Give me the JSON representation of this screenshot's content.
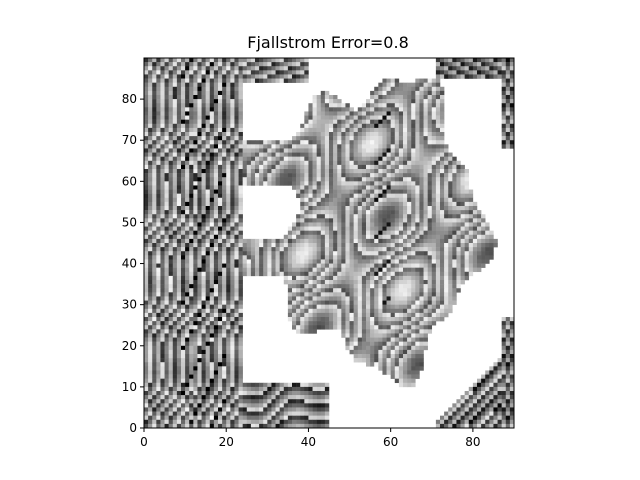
{
  "chart_data": {
    "type": "heatmap",
    "title": "Fjallstrom Error=0.8",
    "xlabel": "",
    "ylabel": "",
    "colormap": "grayscale",
    "grid": false,
    "xlim": [
      0,
      90
    ],
    "ylim": [
      90,
      0
    ],
    "x_ticks": [
      0,
      20,
      40,
      60,
      80
    ],
    "y_ticks": [
      0,
      10,
      20,
      30,
      40,
      50,
      60,
      70,
      80
    ],
    "x_tick_labels": [
      "0",
      "20",
      "40",
      "60",
      "80"
    ],
    "y_tick_labels": [
      "0",
      "10",
      "20",
      "30",
      "40",
      "50",
      "60",
      "70",
      "80"
    ],
    "colors": {
      "background": "#ffffff",
      "axis": "#000000"
    }
  }
}
